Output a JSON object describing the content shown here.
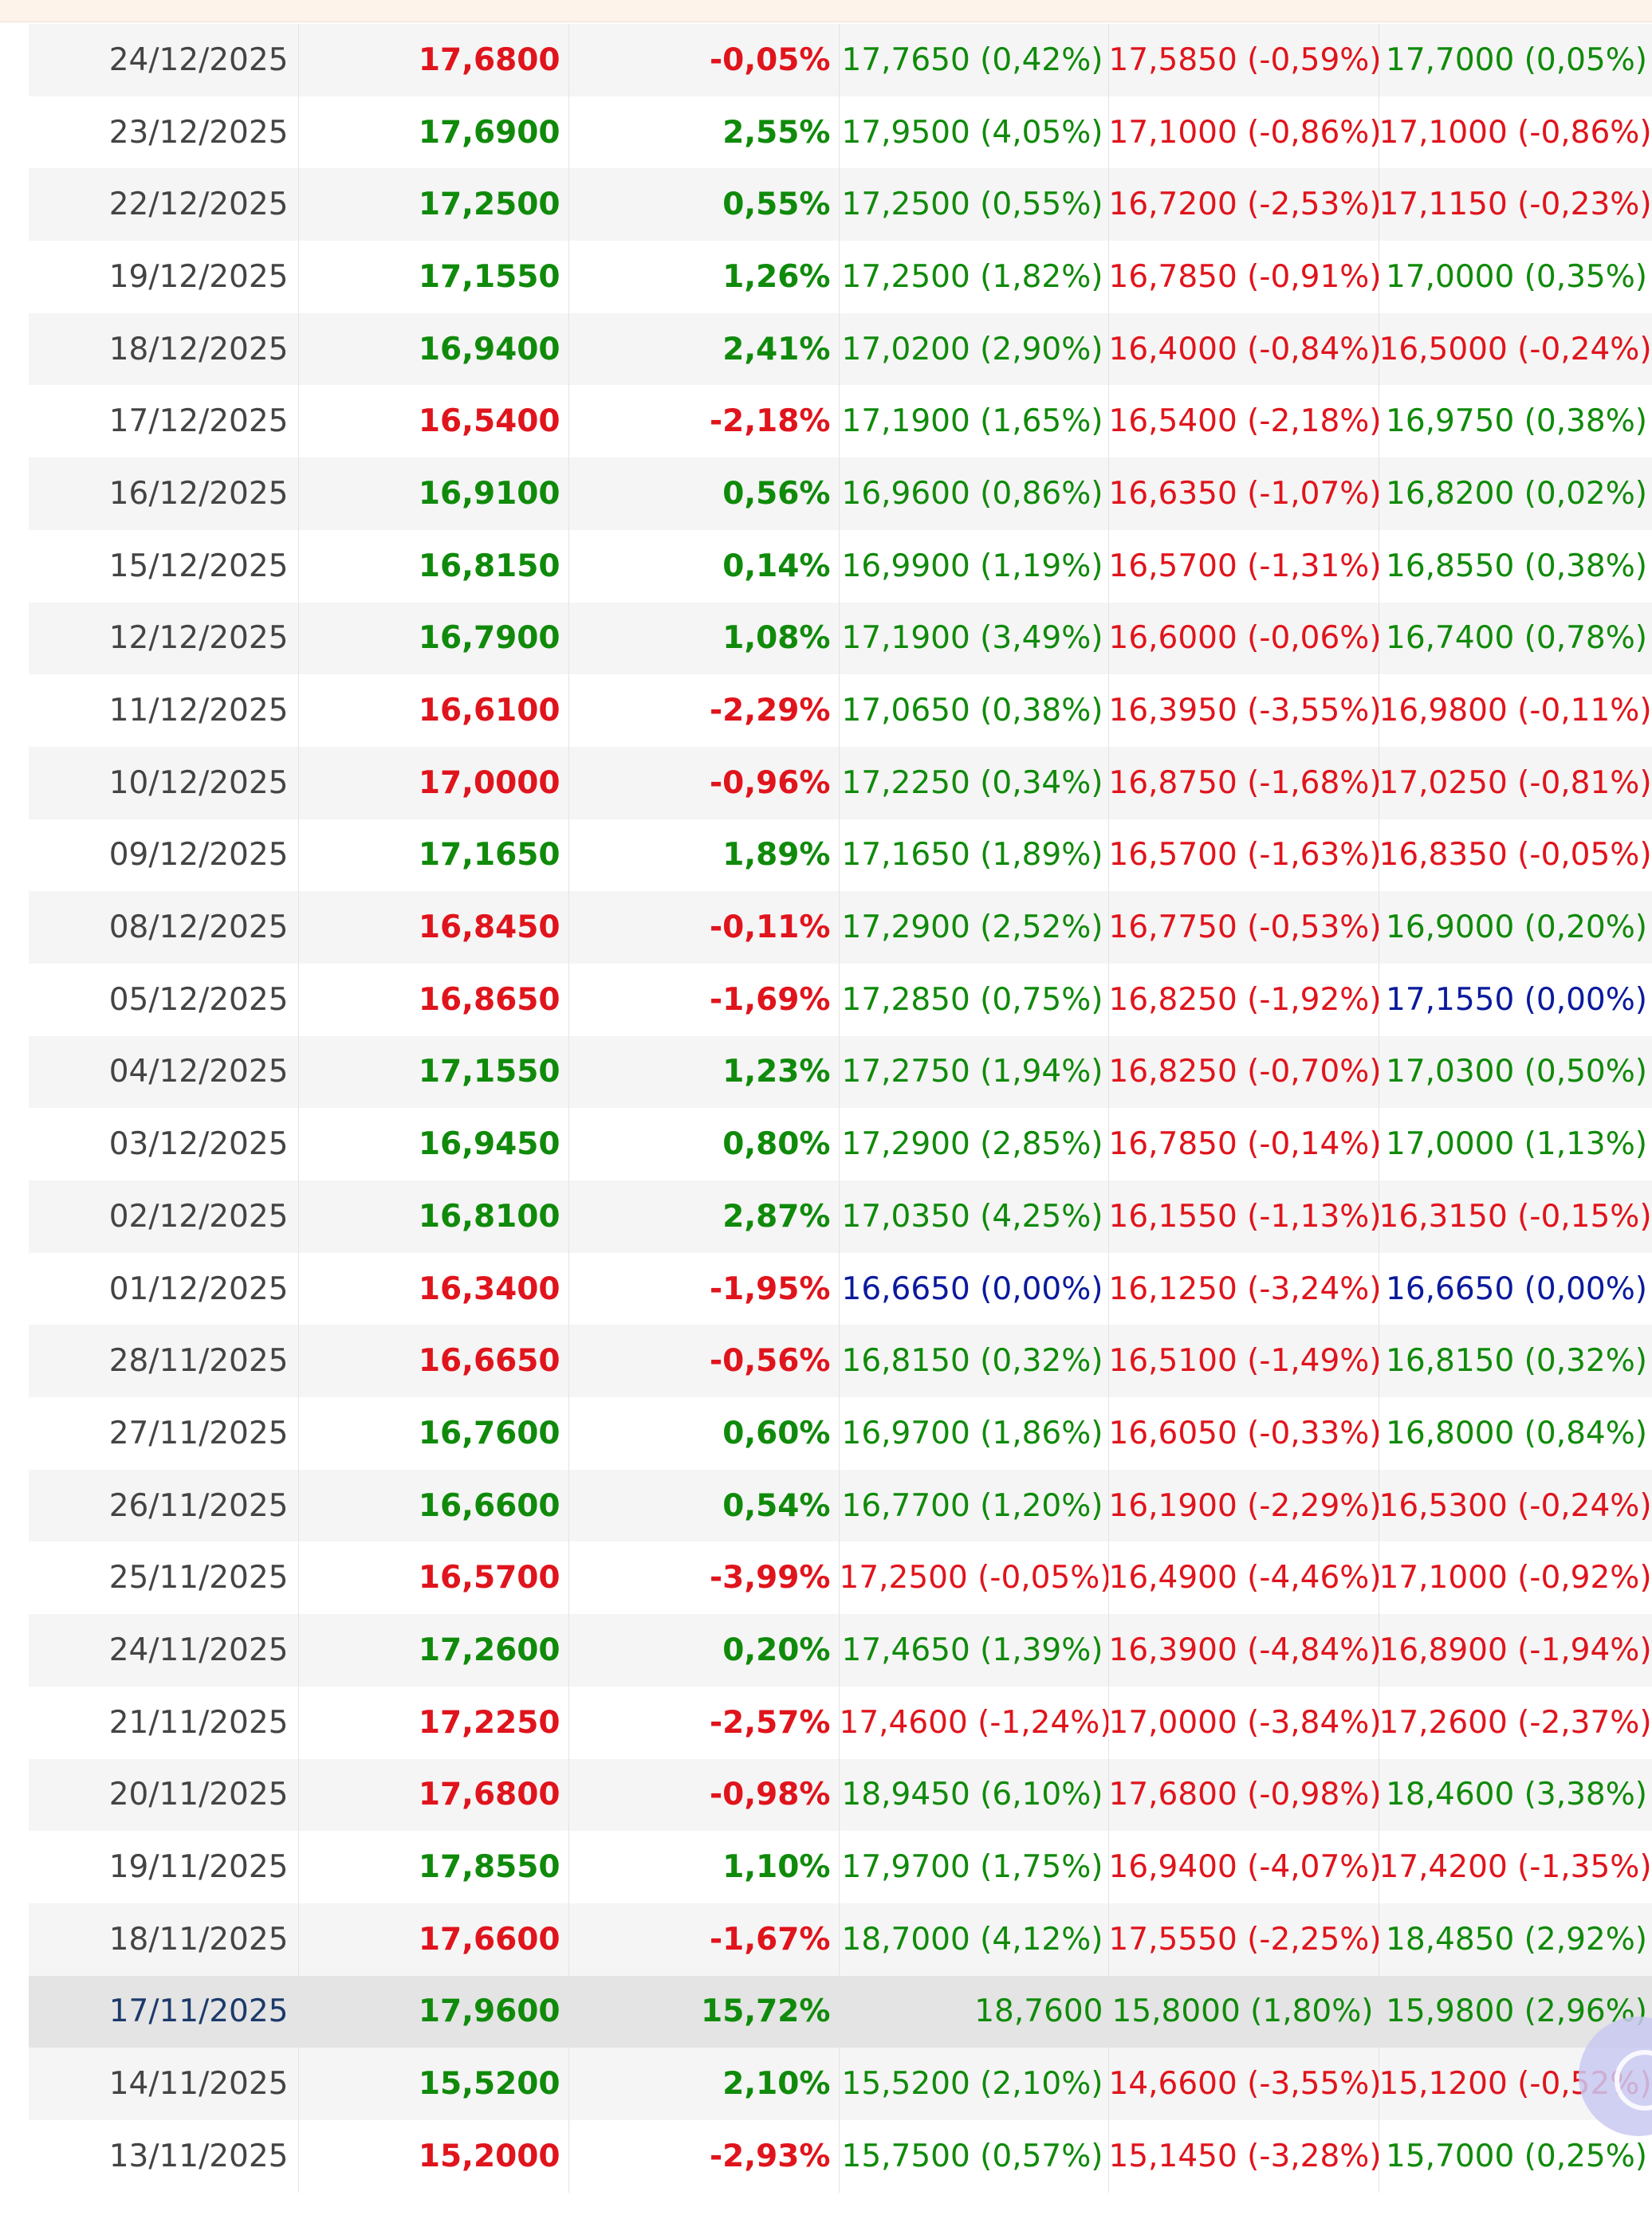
{
  "table": {
    "rows": [
      {
        "date": "24/12/2025",
        "close": "17,6800",
        "close_dir": "down",
        "var": "-0,05%",
        "var_dir": "down",
        "max": "17,7650 (0,42%)",
        "max_dir": "up",
        "min": "17,5850 (-0,59%)",
        "min_dir": "down",
        "open": "17,7000 (0,05%)",
        "open_dir": "up"
      },
      {
        "date": "23/12/2025",
        "close": "17,6900",
        "close_dir": "up",
        "var": "2,55%",
        "var_dir": "up",
        "max": "17,9500 (4,05%)",
        "max_dir": "up",
        "min": "17,1000 (-0,86%)",
        "min_dir": "down",
        "open": "17,1000 (-0,86%)",
        "open_dir": "down"
      },
      {
        "date": "22/12/2025",
        "close": "17,2500",
        "close_dir": "up",
        "var": "0,55%",
        "var_dir": "up",
        "max": "17,2500 (0,55%)",
        "max_dir": "up",
        "min": "16,7200 (-2,53%)",
        "min_dir": "down",
        "open": "17,1150 (-0,23%)",
        "open_dir": "down"
      },
      {
        "date": "19/12/2025",
        "close": "17,1550",
        "close_dir": "up",
        "var": "1,26%",
        "var_dir": "up",
        "max": "17,2500 (1,82%)",
        "max_dir": "up",
        "min": "16,7850 (-0,91%)",
        "min_dir": "down",
        "open": "17,0000 (0,35%)",
        "open_dir": "up"
      },
      {
        "date": "18/12/2025",
        "close": "16,9400",
        "close_dir": "up",
        "var": "2,41%",
        "var_dir": "up",
        "max": "17,0200 (2,90%)",
        "max_dir": "up",
        "min": "16,4000 (-0,84%)",
        "min_dir": "down",
        "open": "16,5000 (-0,24%)",
        "open_dir": "down"
      },
      {
        "date": "17/12/2025",
        "close": "16,5400",
        "close_dir": "down",
        "var": "-2,18%",
        "var_dir": "down",
        "max": "17,1900 (1,65%)",
        "max_dir": "up",
        "min": "16,5400 (-2,18%)",
        "min_dir": "down",
        "open": "16,9750 (0,38%)",
        "open_dir": "up"
      },
      {
        "date": "16/12/2025",
        "close": "16,9100",
        "close_dir": "up",
        "var": "0,56%",
        "var_dir": "up",
        "max": "16,9600 (0,86%)",
        "max_dir": "up",
        "min": "16,6350 (-1,07%)",
        "min_dir": "down",
        "open": "16,8200 (0,02%)",
        "open_dir": "up"
      },
      {
        "date": "15/12/2025",
        "close": "16,8150",
        "close_dir": "up",
        "var": "0,14%",
        "var_dir": "up",
        "max": "16,9900 (1,19%)",
        "max_dir": "up",
        "min": "16,5700 (-1,31%)",
        "min_dir": "down",
        "open": "16,8550 (0,38%)",
        "open_dir": "up"
      },
      {
        "date": "12/12/2025",
        "close": "16,7900",
        "close_dir": "up",
        "var": "1,08%",
        "var_dir": "up",
        "max": "17,1900 (3,49%)",
        "max_dir": "up",
        "min": "16,6000 (-0,06%)",
        "min_dir": "down",
        "open": "16,7400 (0,78%)",
        "open_dir": "up"
      },
      {
        "date": "11/12/2025",
        "close": "16,6100",
        "close_dir": "down",
        "var": "-2,29%",
        "var_dir": "down",
        "max": "17,0650 (0,38%)",
        "max_dir": "up",
        "min": "16,3950 (-3,55%)",
        "min_dir": "down",
        "open": "16,9800 (-0,11%)",
        "open_dir": "down"
      },
      {
        "date": "10/12/2025",
        "close": "17,0000",
        "close_dir": "down",
        "var": "-0,96%",
        "var_dir": "down",
        "max": "17,2250 (0,34%)",
        "max_dir": "up",
        "min": "16,8750 (-1,68%)",
        "min_dir": "down",
        "open": "17,0250 (-0,81%)",
        "open_dir": "down"
      },
      {
        "date": "09/12/2025",
        "close": "17,1650",
        "close_dir": "up",
        "var": "1,89%",
        "var_dir": "up",
        "max": "17,1650 (1,89%)",
        "max_dir": "up",
        "min": "16,5700 (-1,63%)",
        "min_dir": "down",
        "open": "16,8350 (-0,05%)",
        "open_dir": "down"
      },
      {
        "date": "08/12/2025",
        "close": "16,8450",
        "close_dir": "down",
        "var": "-0,11%",
        "var_dir": "down",
        "max": "17,2900 (2,52%)",
        "max_dir": "up",
        "min": "16,7750 (-0,53%)",
        "min_dir": "down",
        "open": "16,9000 (0,20%)",
        "open_dir": "up"
      },
      {
        "date": "05/12/2025",
        "close": "16,8650",
        "close_dir": "down",
        "var": "-1,69%",
        "var_dir": "down",
        "max": "17,2850 (0,75%)",
        "max_dir": "up",
        "min": "16,8250 (-1,92%)",
        "min_dir": "down",
        "open": "17,1550 (0,00%)",
        "open_dir": "flat"
      },
      {
        "date": "04/12/2025",
        "close": "17,1550",
        "close_dir": "up",
        "var": "1,23%",
        "var_dir": "up",
        "max": "17,2750 (1,94%)",
        "max_dir": "up",
        "min": "16,8250 (-0,70%)",
        "min_dir": "down",
        "open": "17,0300 (0,50%)",
        "open_dir": "up"
      },
      {
        "date": "03/12/2025",
        "close": "16,9450",
        "close_dir": "up",
        "var": "0,80%",
        "var_dir": "up",
        "max": "17,2900 (2,85%)",
        "max_dir": "up",
        "min": "16,7850 (-0,14%)",
        "min_dir": "down",
        "open": "17,0000 (1,13%)",
        "open_dir": "up"
      },
      {
        "date": "02/12/2025",
        "close": "16,8100",
        "close_dir": "up",
        "var": "2,87%",
        "var_dir": "up",
        "max": "17,0350 (4,25%)",
        "max_dir": "up",
        "min": "16,1550 (-1,13%)",
        "min_dir": "down",
        "open": "16,3150 (-0,15%)",
        "open_dir": "down"
      },
      {
        "date": "01/12/2025",
        "close": "16,3400",
        "close_dir": "down",
        "var": "-1,95%",
        "var_dir": "down",
        "max": "16,6650 (0,00%)",
        "max_dir": "flat",
        "min": "16,1250 (-3,24%)",
        "min_dir": "down",
        "open": "16,6650 (0,00%)",
        "open_dir": "flat"
      },
      {
        "date": "28/11/2025",
        "close": "16,6650",
        "close_dir": "down",
        "var": "-0,56%",
        "var_dir": "down",
        "max": "16,8150 (0,32%)",
        "max_dir": "up",
        "min": "16,5100 (-1,49%)",
        "min_dir": "down",
        "open": "16,8150 (0,32%)",
        "open_dir": "up"
      },
      {
        "date": "27/11/2025",
        "close": "16,7600",
        "close_dir": "up",
        "var": "0,60%",
        "var_dir": "up",
        "max": "16,9700 (1,86%)",
        "max_dir": "up",
        "min": "16,6050 (-0,33%)",
        "min_dir": "down",
        "open": "16,8000 (0,84%)",
        "open_dir": "up"
      },
      {
        "date": "26/11/2025",
        "close": "16,6600",
        "close_dir": "up",
        "var": "0,54%",
        "var_dir": "up",
        "max": "16,7700 (1,20%)",
        "max_dir": "up",
        "min": "16,1900 (-2,29%)",
        "min_dir": "down",
        "open": "16,5300 (-0,24%)",
        "open_dir": "down"
      },
      {
        "date": "25/11/2025",
        "close": "16,5700",
        "close_dir": "down",
        "var": "-3,99%",
        "var_dir": "down",
        "max": "17,2500 (-0,05%)",
        "max_dir": "down",
        "min": "16,4900 (-4,46%)",
        "min_dir": "down",
        "open": "17,1000 (-0,92%)",
        "open_dir": "down"
      },
      {
        "date": "24/11/2025",
        "close": "17,2600",
        "close_dir": "up",
        "var": "0,20%",
        "var_dir": "up",
        "max": "17,4650 (1,39%)",
        "max_dir": "up",
        "min": "16,3900 (-4,84%)",
        "min_dir": "down",
        "open": "16,8900 (-1,94%)",
        "open_dir": "down"
      },
      {
        "date": "21/11/2025",
        "close": "17,2250",
        "close_dir": "down",
        "var": "-2,57%",
        "var_dir": "down",
        "max": "17,4600 (-1,24%)",
        "max_dir": "down",
        "min": "17,0000 (-3,84%)",
        "min_dir": "down",
        "open": "17,2600 (-2,37%)",
        "open_dir": "down"
      },
      {
        "date": "20/11/2025",
        "close": "17,6800",
        "close_dir": "down",
        "var": "-0,98%",
        "var_dir": "down",
        "max": "18,9450 (6,10%)",
        "max_dir": "up",
        "min": "17,6800 (-0,98%)",
        "min_dir": "down",
        "open": "18,4600 (3,38%)",
        "open_dir": "up"
      },
      {
        "date": "19/11/2025",
        "close": "17,8550",
        "close_dir": "up",
        "var": "1,10%",
        "var_dir": "up",
        "max": "17,9700 (1,75%)",
        "max_dir": "up",
        "min": "16,9400 (-4,07%)",
        "min_dir": "down",
        "open": "17,4200 (-1,35%)",
        "open_dir": "down"
      },
      {
        "date": "18/11/2025",
        "close": "17,6600",
        "close_dir": "down",
        "var": "-1,67%",
        "var_dir": "down",
        "max": "18,7000 (4,12%)",
        "max_dir": "up",
        "min": "17,5550 (-2,25%)",
        "min_dir": "down",
        "open": "18,4850 (2,92%)",
        "open_dir": "up"
      },
      {
        "date": "17/11/2025",
        "close": "17,9600",
        "close_dir": "up",
        "var": "15,72%",
        "var_dir": "up",
        "max": "18,7600",
        "max_dir": "up",
        "min": "15,8000 (1,80%)",
        "min_dir": "up",
        "open": "15,9800 (2,96%)",
        "open_dir": "up",
        "highlight": true
      },
      {
        "date": "14/11/2025",
        "close": "15,5200",
        "close_dir": "up",
        "var": "2,10%",
        "var_dir": "up",
        "max": "15,5200 (2,10%)",
        "max_dir": "up",
        "min": "14,6600 (-3,55%)",
        "min_dir": "down",
        "open": "15,1200 (-0,52%)",
        "open_dir": "down"
      },
      {
        "date": "13/11/2025",
        "close": "15,2000",
        "close_dir": "down",
        "var": "-2,93%",
        "var_dir": "down",
        "max": "15,7500 (0,57%)",
        "max_dir": "up",
        "min": "15,1450 (-3,28%)",
        "min_dir": "down",
        "open": "15,7000 (0,25%)",
        "open_dir": "up"
      }
    ]
  },
  "colors": {
    "up": "#108a0b",
    "down": "#e0141c",
    "flat": "#0a1a9c"
  },
  "floating_button": {
    "icon": "floating-action-icon"
  }
}
